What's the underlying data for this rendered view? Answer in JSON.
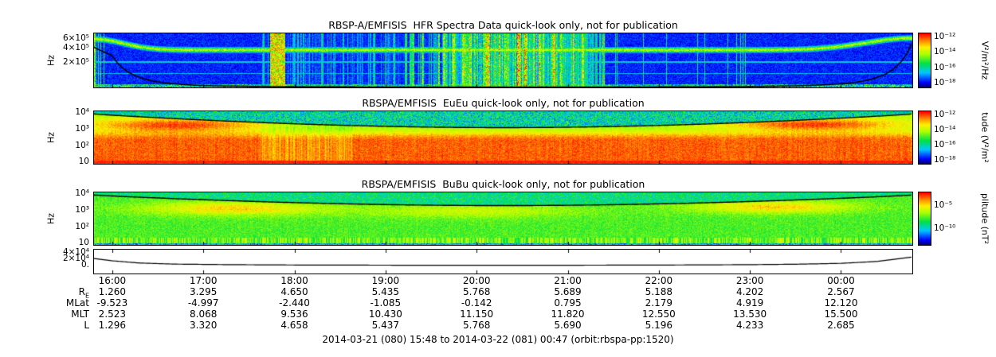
{
  "page": {
    "caption": "2014-03-21 (080) 15:48 to 2014-03-22 (081) 00:47 (orbit:rbspa-pp:1520)"
  },
  "time_axis": {
    "labels": [
      "16:00",
      "17:00",
      "18:00",
      "19:00",
      "20:00",
      "21:00",
      "22:00",
      "23:00",
      "00:00"
    ],
    "start": "15:48",
    "end": "00:47"
  },
  "ephemeris": {
    "rows": [
      {
        "label": "R",
        "sub": "E",
        "values": [
          "1.260",
          "3.295",
          "4.650",
          "5.435",
          "5.768",
          "5.689",
          "5.188",
          "4.202",
          "2.567"
        ]
      },
      {
        "label": "MLat",
        "sub": "",
        "values": [
          "-9.523",
          "-4.997",
          "-2.440",
          "-1.085",
          "-0.142",
          "0.795",
          "2.179",
          "4.919",
          "12.120"
        ]
      },
      {
        "label": "MLT",
        "sub": "",
        "values": [
          "2.523",
          "8.068",
          "9.536",
          "10.430",
          "11.150",
          "11.820",
          "12.550",
          "13.530",
          "15.500"
        ]
      },
      {
        "label": "L",
        "sub": "",
        "values": [
          "1.296",
          "3.320",
          "4.658",
          "5.437",
          "5.768",
          "5.690",
          "5.196",
          "4.233",
          "2.685"
        ]
      }
    ]
  },
  "chart_data": [
    {
      "type": "heatmap",
      "title": "RBSP-A/EMFISIS  HFR Spectra Data quick-look only, not for publication",
      "ylabel": "Hz",
      "yticks": [
        "6×10⁵",
        "4×10⁵",
        "2×10⁵"
      ],
      "colorbar": {
        "ticks": [
          "10⁻¹²",
          "10⁻¹⁴",
          "10⁻¹⁶",
          "10⁻¹⁸"
        ],
        "label": "V²/m²/Hz"
      },
      "description": "HFR spectrogram: dark blue background, cyan-green upper-hybrid band near top, broadband orange/red vertical bursts ~17:40-21:30, black fce trace dipping from upper left to bottom and rising steeply at far right"
    },
    {
      "type": "heatmap",
      "title": "RBSPA/EMFISIS  EuEu quick-look only, not for publication",
      "ylabel": "Hz",
      "yticks": [
        "10⁴",
        "10³",
        "10²",
        "10"
      ],
      "colorbar": {
        "ticks": [
          "10⁻¹²",
          "10⁻¹⁴",
          "10⁻¹⁶",
          "10⁻¹⁸"
        ],
        "label": "tude (V²/m²"
      },
      "description": "Electric field spectrogram: intense red/orange below a few kHz for the whole interval, orange-red high-frequency blobs near both orbit ends, green speckle above the black fce trace near the top"
    },
    {
      "type": "heatmap",
      "title": "RBSPA/EMFISIS  BuBu quick-look only, not for publication",
      "ylabel": "Hz",
      "yticks": [
        "10⁴",
        "10³",
        "10²",
        "10"
      ],
      "colorbar": {
        "ticks": [
          "10⁻⁵",
          "10⁻¹⁰"
        ],
        "label": "plitude (nT²"
      },
      "description": "Magnetic field spectrogram: mostly green/teal with yellow-green enhancements near both orbit ends and mid-orbit, black fce trace near top dipping at apogee"
    },
    {
      "type": "line",
      "yticks": [
        "4×10⁴",
        "2×10⁴",
        "0."
      ],
      "ylim": [
        0,
        50000
      ],
      "series": [
        {
          "name": "cutoff-frequency-line",
          "x_hours": [
            15.8,
            16.0,
            16.3,
            16.7,
            17.3,
            18,
            19,
            20,
            21,
            22,
            23,
            23.5,
            24.0,
            24.4,
            24.783
          ],
          "values": [
            22000,
            15000,
            8000,
            4500,
            2800,
            1800,
            1200,
            1000,
            1100,
            1600,
            2800,
            4200,
            7000,
            13000,
            27000
          ]
        }
      ]
    }
  ]
}
